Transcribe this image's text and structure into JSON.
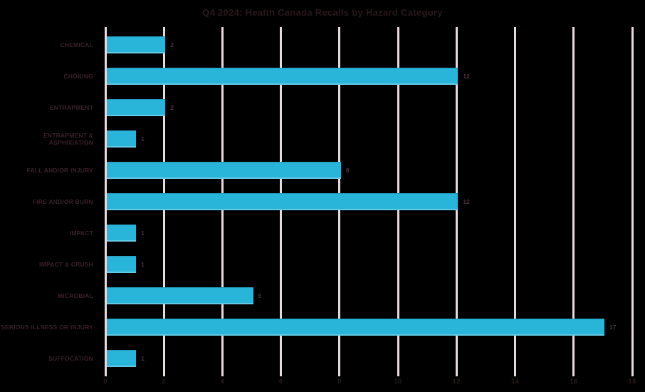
{
  "page": {
    "background": "#000000"
  },
  "chart_data": {
    "type": "bar",
    "orientation": "horizontal",
    "title": "Q4 2024: Health Canada Recalls by Hazard Category",
    "categories": [
      "CHEMICAL",
      "CHOKING",
      "ENTRAPMENT",
      "ENTRAPMENT & ASPHIXIATION",
      "FALL AND/OR INJURY",
      "FIRE AND/OR BURN",
      "IMPACT",
      "IMPACT & CRUSH",
      "MICROBIAL",
      "SERIOUS ILLNESS OR INJURY",
      "SUFFOCATION"
    ],
    "values": [
      2,
      12,
      2,
      1,
      8,
      12,
      1,
      1,
      5,
      17,
      1
    ],
    "data_labels": [
      2,
      12,
      2,
      1,
      8,
      12,
      1,
      1,
      5,
      17,
      1
    ],
    "xlabel": "",
    "ylabel": "",
    "xlim": [
      0,
      18
    ],
    "xticks": [
      0,
      2,
      4,
      6,
      8,
      10,
      12,
      14,
      16,
      18
    ],
    "grid": "vertical-only",
    "legend": "none",
    "colors": {
      "background": "#000000",
      "bar": "#29b5d9",
      "gridline": "#e8d9e1",
      "title_text": "#2a171b",
      "category_text": "#3a2128",
      "value_text": "#54303c",
      "tick_text": "#2c1a1a"
    }
  }
}
